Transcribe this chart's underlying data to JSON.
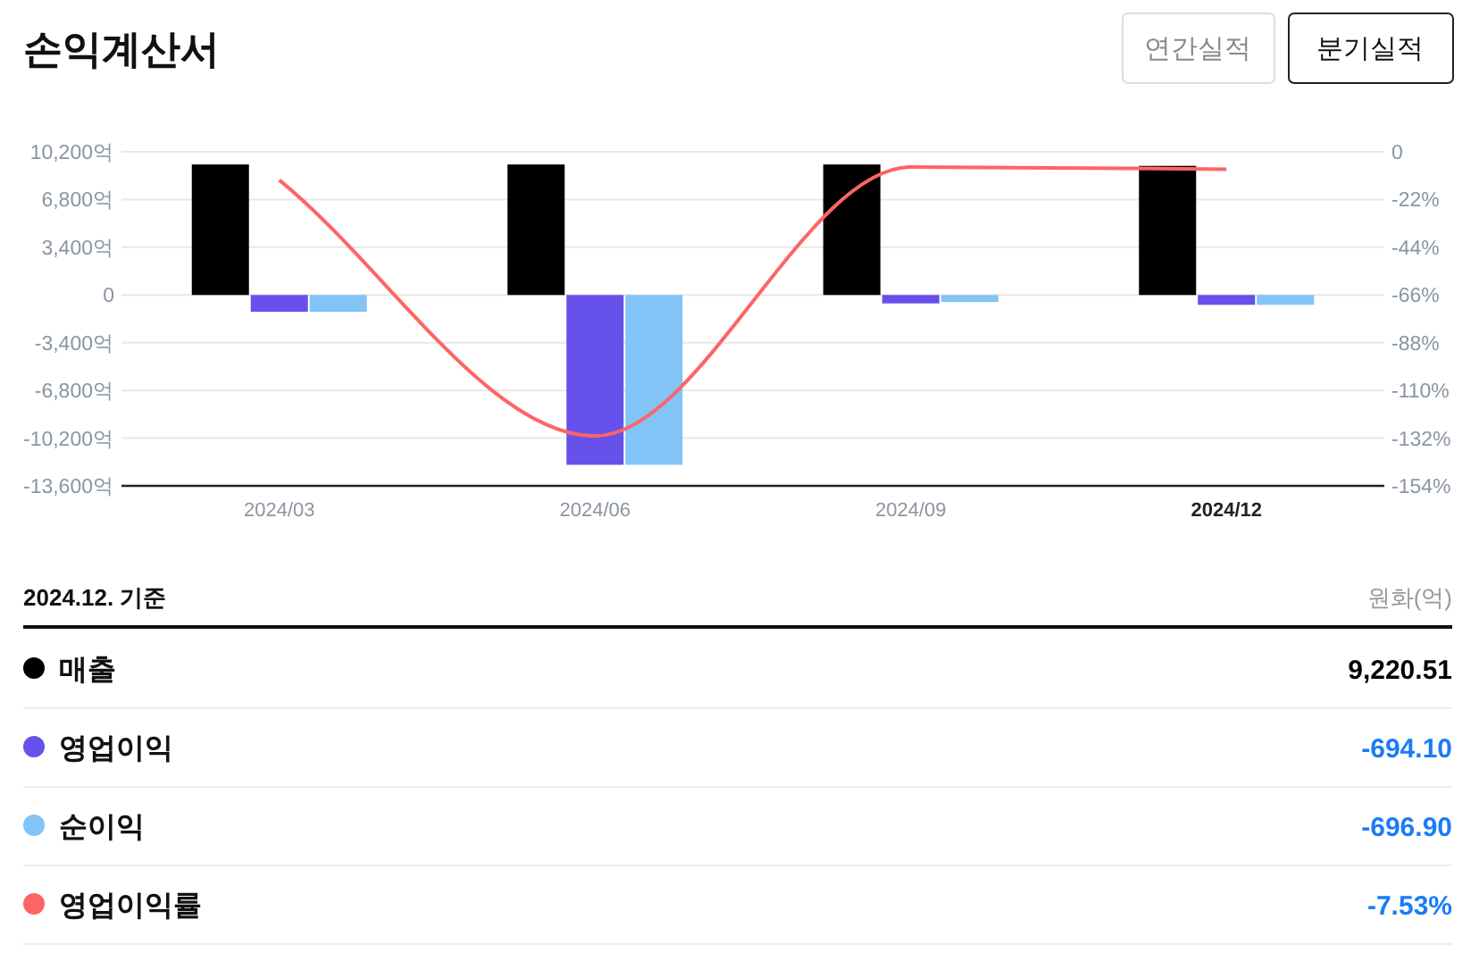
{
  "chart_data": [
    {
      "type": "bar",
      "title": "손익계산서",
      "categories": [
        "2024/03",
        "2024/06",
        "2024/09",
        "2024/12"
      ],
      "series": [
        {
          "name": "매출",
          "color": "#000000",
          "values": [
            9300,
            9300,
            9300,
            9200
          ]
        },
        {
          "name": "영업이익",
          "color": "#6651ea",
          "values": [
            -1200,
            -12100,
            -600,
            -700
          ]
        },
        {
          "name": "순이익",
          "color": "#81c4f5",
          "values": [
            -1200,
            -12100,
            -500,
            -700
          ]
        },
        {
          "name": "영업이익률",
          "type": "line",
          "axis": "y2",
          "color": "#ff6464",
          "values": [
            -13,
            -131,
            -7,
            -8
          ]
        }
      ],
      "ylim": [
        -13600,
        10200
      ],
      "yticks": [
        {
          "value": 10200,
          "label": "10,200억"
        },
        {
          "value": 6800,
          "label": "6,800억"
        },
        {
          "value": 3400,
          "label": "3,400억"
        },
        0,
        {
          "value": -3400,
          "label": "-3,400억"
        },
        {
          "value": -6800,
          "label": "-6,800억"
        },
        {
          "value": -10200,
          "label": "-10,200억"
        },
        {
          "value": -13600,
          "label": "-13,600억"
        }
      ],
      "y2lim": [
        -154,
        0
      ],
      "y2ticks": [
        0,
        {
          "value": -22,
          "label": "-22%"
        },
        {
          "value": -44,
          "label": "-44%"
        },
        {
          "value": -66,
          "label": "-66%"
        },
        {
          "value": -88,
          "label": "-88%"
        },
        {
          "value": -110,
          "label": "-110%"
        },
        {
          "value": -132,
          "label": "-132%"
        },
        {
          "value": -154,
          "label": "-154%"
        }
      ],
      "grid": "y",
      "legend": "bottom",
      "annotations": [
        "연간실적",
        "분기실적"
      ]
    },
    {
      "type": "other",
      "annotations": [
        "2024.12. 기준",
        "원화(억)",
        "9,220.51",
        "-694.10",
        "-696.90",
        "-7.53%"
      ]
    }
  ]
}
